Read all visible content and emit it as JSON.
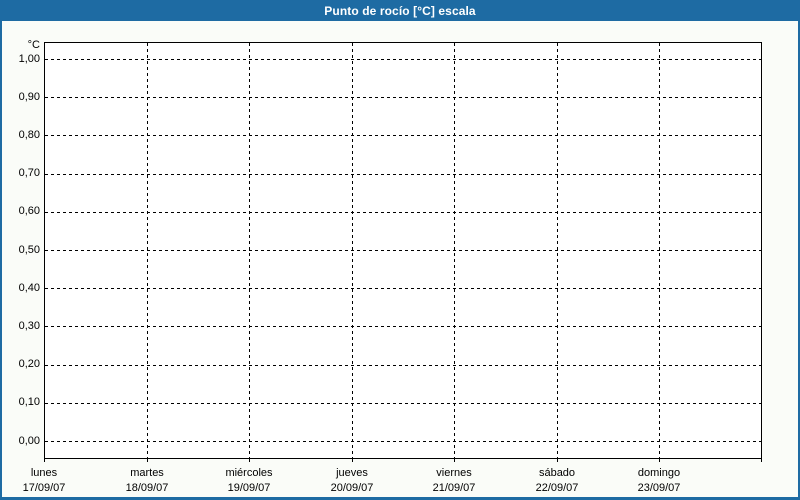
{
  "window": {
    "title": "Punto de rocío [°C] escala"
  },
  "colors": {
    "titlebar_bg": "#1e6ba3",
    "frame_border": "#1e6ba3",
    "window_bg": "#fafcf8",
    "plot_bg": "#ffffff",
    "grid_color": "#000000",
    "title_text": "#ffffff",
    "text_color": "#000000"
  },
  "chart_data": {
    "type": "line",
    "title": "Punto de rocío [°C] escala",
    "ylabel_unit": "°C",
    "ylim": [
      0.0,
      1.0
    ],
    "y_step": 0.1,
    "decimal_separator": ",",
    "y_ticks": [
      "1,00",
      "0,90",
      "0,80",
      "0,70",
      "0,60",
      "0,50",
      "0,40",
      "0,30",
      "0,20",
      "0,10",
      "0,00"
    ],
    "x_ticks": [
      {
        "day": "lunes",
        "date": "17/09/07"
      },
      {
        "day": "martes",
        "date": "18/09/07"
      },
      {
        "day": "miércoles",
        "date": "19/09/07"
      },
      {
        "day": "jueves",
        "date": "20/09/07"
      },
      {
        "day": "viernes",
        "date": "21/09/07"
      },
      {
        "day": "sábado",
        "date": "22/09/07"
      },
      {
        "day": "domingo",
        "date": "23/09/07"
      }
    ],
    "grid": "dashed, both axes",
    "legend": "none",
    "series": []
  }
}
